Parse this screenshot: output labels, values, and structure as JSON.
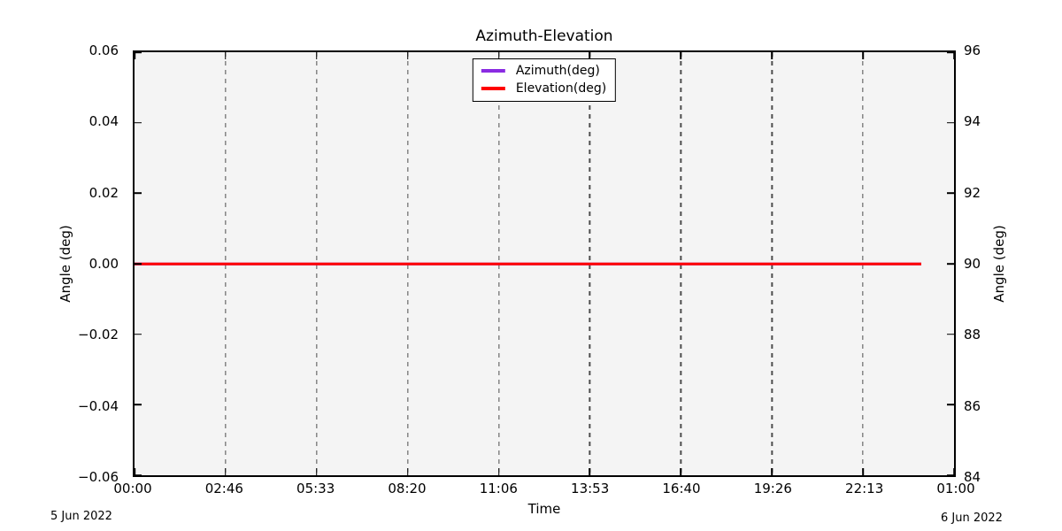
{
  "chart_data": {
    "type": "line",
    "title": "Azimuth-Elevation",
    "xlabel": "Time",
    "x_tick_labels": [
      "00:00",
      "02:46",
      "05:33",
      "08:20",
      "11:06",
      "13:53",
      "16:40",
      "19:26",
      "22:13",
      "01:00"
    ],
    "x_axis_span_hours": 25,
    "left_axis": {
      "label": "Angle (deg)",
      "min": -0.06,
      "max": 0.06,
      "tick_labels": [
        "0.06",
        "0.04",
        "0.02",
        "0.00",
        "−0.02",
        "−0.04",
        "−0.06"
      ]
    },
    "right_axis": {
      "label": "Angle (deg)",
      "min": 84,
      "max": 96,
      "tick_labels": [
        "96",
        "94",
        "92",
        "90",
        "88",
        "86",
        "84"
      ]
    },
    "grid": {
      "vertical": true,
      "style": "dashed",
      "color": "#4d4d4d"
    },
    "plot_bg": "#f4f4f4",
    "legend": {
      "position": "upper center",
      "entries": [
        {
          "label": "Azimuth(deg)",
          "color": "#8A2BE2"
        },
        {
          "label": "Elevation(deg)",
          "color": "#FF0000"
        }
      ]
    },
    "series": [
      {
        "name": "Azimuth(deg)",
        "color": "#8A2BE2",
        "axis": "left",
        "constant_value": 0.0,
        "start_hour": 0,
        "end_hour": 24
      },
      {
        "name": "Elevation(deg)",
        "color": "#FF0000",
        "axis": "right",
        "constant_value": 90.0,
        "start_hour": 0,
        "end_hour": 24
      }
    ],
    "annotations": {
      "bottom_left": "5 Jun 2022",
      "bottom_right": "6 Jun 2022"
    }
  }
}
